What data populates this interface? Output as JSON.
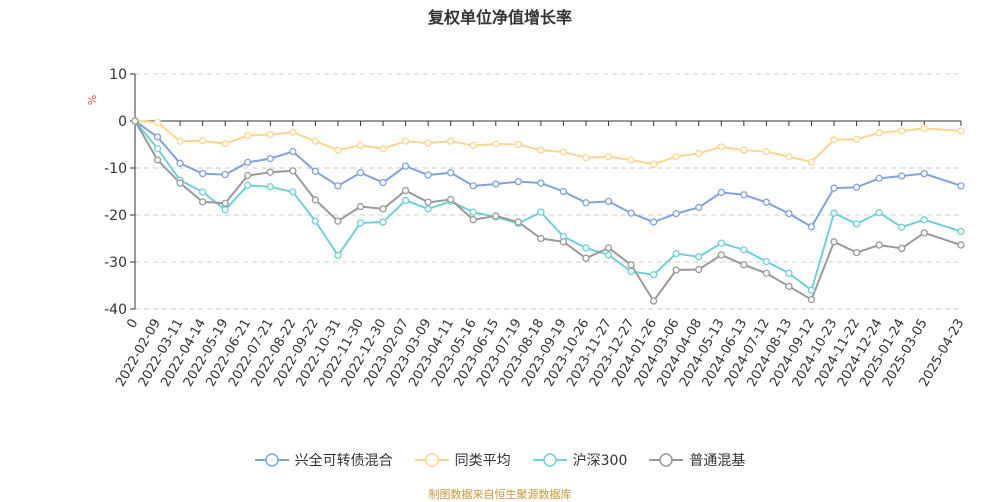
{
  "chart_data": {
    "type": "line",
    "title": "复权单位净值增长率",
    "ylabel": "%",
    "ylim": [
      -40,
      10
    ],
    "yticks": [
      10,
      0,
      -10,
      -20,
      -30,
      -40
    ],
    "grid": true,
    "legend_position": "bottom",
    "categories": [
      "0",
      "2022-02-09",
      "2022-03-11",
      "2022-04-14",
      "2022-05-19",
      "2022-06-21",
      "2022-07-21",
      "2022-08-22",
      "2022-09-22",
      "2022-10-31",
      "2022-11-30",
      "2022-12-30",
      "2023-02-07",
      "2023-03-09",
      "2023-04-11",
      "2023-05-16",
      "2023-06-15",
      "2023-07-19",
      "2023-08-18",
      "2023-09-19",
      "2023-10-26",
      "2023-11-27",
      "2023-12-27",
      "2024-01-26",
      "2024-03-06",
      "2024-04-08",
      "2024-05-13",
      "2024-06-13",
      "2024-07-12",
      "2024-08-13",
      "2024-09-12",
      "2024-10-23",
      "2024-11-22",
      "2024-12-24",
      "2025-01-24",
      "2025-03-05",
      "2025-04-23"
    ],
    "series": [
      {
        "name": "兴全可转债混合",
        "color": "#7fa3dc",
        "values": [
          0,
          -3.4,
          -9,
          -11.2,
          -11.4,
          -8.8,
          -8,
          -6.5,
          -10.7,
          -13.8,
          -11,
          -13.1,
          -9.6,
          -11.5,
          -11,
          -13.8,
          -13.4,
          -12.9,
          -13.2,
          -15,
          -17.4,
          -17.1,
          -19.6,
          -21.5,
          -19.7,
          -18.4,
          -15.2,
          -15.7,
          -17.3,
          -19.7,
          -22.5,
          -14.3,
          -14.1,
          -12.2,
          -11.7,
          -11.2,
          -13.8
        ]
      },
      {
        "name": "同类平均",
        "color": "#fdd58f",
        "values": [
          0,
          -0.3,
          -4.3,
          -4.2,
          -4.8,
          -3.1,
          -2.9,
          -2.4,
          -4.3,
          -6.2,
          -5.2,
          -5.9,
          -4.3,
          -4.7,
          -4.3,
          -5.2,
          -4.9,
          -5,
          -6.2,
          -6.6,
          -7.8,
          -7.6,
          -8.3,
          -9.2,
          -7.6,
          -6.9,
          -5.5,
          -6.2,
          -6.5,
          -7.6,
          -8.7,
          -4,
          -3.9,
          -2.5,
          -2.1,
          -1.6,
          -2.1
        ]
      },
      {
        "name": "沪深300",
        "color": "#6fd0d6",
        "values": [
          0,
          -5.9,
          -12.6,
          -15.1,
          -18.9,
          -13.7,
          -14,
          -15.1,
          -21.3,
          -28.6,
          -21.7,
          -21.5,
          -16.9,
          -18.7,
          -17.1,
          -19.4,
          -20.4,
          -21.8,
          -19.4,
          -24.6,
          -27,
          -28.5,
          -32,
          -32.7,
          -28.2,
          -28.9,
          -26,
          -27.4,
          -29.9,
          -32.4,
          -36,
          -19.6,
          -21.9,
          -19.5,
          -22.6,
          -21,
          -23.5
        ]
      },
      {
        "name": "普通混基",
        "color": "#999999",
        "values": [
          0,
          -8.3,
          -13.2,
          -17.2,
          -17.5,
          -11.6,
          -10.9,
          -10.6,
          -16.8,
          -21.3,
          -18.2,
          -18.7,
          -14.8,
          -17.3,
          -16.7,
          -21,
          -20.2,
          -21.5,
          -25,
          -25.7,
          -29.2,
          -27,
          -30.6,
          -38.3,
          -31.7,
          -31.6,
          -28.5,
          -30.6,
          -32.4,
          -35.2,
          -38,
          -25.7,
          -28,
          -26.4,
          -27.1,
          -23.8,
          -26.4
        ]
      }
    ]
  },
  "source": "制图数据来自恒生聚源数据库"
}
